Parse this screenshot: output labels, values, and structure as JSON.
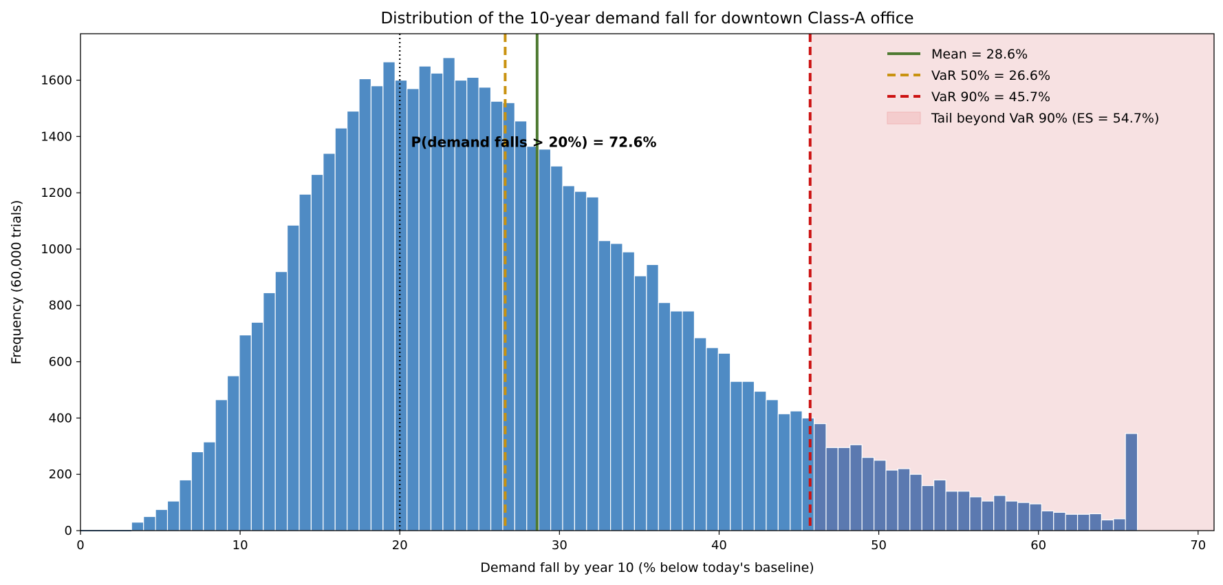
{
  "chart_data": {
    "type": "bar",
    "title": "Distribution of the 10-year demand fall for downtown Class-A office",
    "xlabel": "Demand fall by year 10  (% below today's baseline)",
    "ylabel": "Frequency  (60,000 trials)",
    "xlim": [
      0,
      71
    ],
    "ylim": [
      0,
      1765
    ],
    "x_ticks": [
      0,
      10,
      20,
      30,
      40,
      50,
      60,
      70
    ],
    "y_ticks": [
      0,
      200,
      400,
      600,
      800,
      1000,
      1200,
      1400,
      1600
    ],
    "bin_width": 0.75,
    "bin_start": 3.2,
    "values": [
      30,
      50,
      75,
      105,
      180,
      280,
      315,
      465,
      550,
      695,
      740,
      845,
      920,
      1085,
      1195,
      1265,
      1340,
      1430,
      1490,
      1605,
      1580,
      1665,
      1600,
      1570,
      1650,
      1625,
      1680,
      1600,
      1610,
      1575,
      1525,
      1520,
      1455,
      1365,
      1355,
      1295,
      1225,
      1205,
      1185,
      1030,
      1020,
      990,
      905,
      945,
      810,
      780,
      780,
      685,
      650,
      630,
      530,
      530,
      495,
      465,
      415,
      425,
      400,
      380,
      295,
      295,
      305,
      260,
      250,
      215,
      220,
      200,
      160,
      180,
      140,
      140,
      120,
      105,
      125,
      105,
      100,
      95,
      70,
      65,
      58,
      58,
      60,
      38,
      42,
      345
    ],
    "bar_color": "#4f8bc4",
    "tail_bar_color": "#5b79b0",
    "tail_shade_color": "#f7e1e2",
    "grid": false,
    "legend_position": "top-right",
    "vlines": [
      {
        "name": "mean",
        "x": 28.6,
        "color": "#4e7a32",
        "style": "solid"
      },
      {
        "name": "var50",
        "x": 26.6,
        "color": "#c99210",
        "style": "dashed"
      },
      {
        "name": "var90",
        "x": 45.7,
        "color": "#cc1111",
        "style": "dashed"
      },
      {
        "name": "threshold",
        "x": 20.0,
        "color": "#000000",
        "style": "dotted"
      }
    ],
    "legend": [
      {
        "label": "Mean = 28.6%",
        "color": "#4e7a32",
        "style": "solid"
      },
      {
        "label": "VaR 50% = 26.6%",
        "color": "#c99210",
        "style": "dashed"
      },
      {
        "label": "VaR 90% = 45.7%",
        "color": "#cc1111",
        "style": "dashed"
      },
      {
        "label": "Tail beyond VaR 90% (ES = 54.7%)",
        "color": "#f4cccd",
        "style": "patch"
      }
    ],
    "annotation": {
      "text": "P(demand falls > 20%) = 72.6%",
      "x": 20.7,
      "y": 1380
    }
  }
}
